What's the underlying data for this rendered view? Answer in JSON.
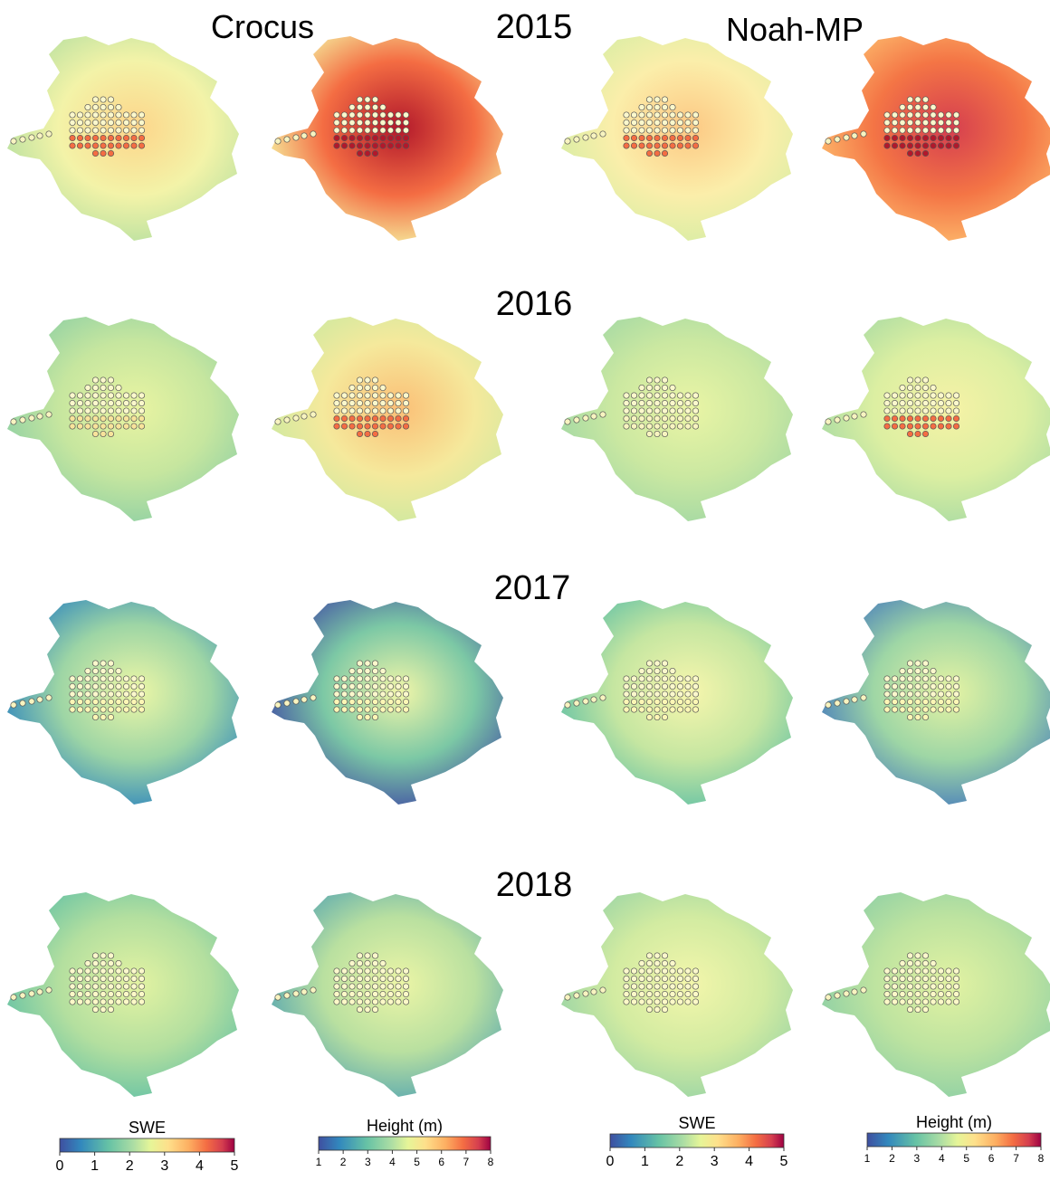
{
  "models": [
    "Crocus",
    "Noah-MP"
  ],
  "years": [
    "2015",
    "2016",
    "2017",
    "2018"
  ],
  "colorbars": [
    {
      "label": "SWE",
      "lim": [
        0,
        5
      ],
      "ticks": [
        0,
        1,
        2,
        3,
        4,
        5
      ]
    },
    {
      "label": "Height (m)",
      "lim": [
        1,
        8
      ],
      "ticks": [
        1,
        2,
        3,
        4,
        5,
        6,
        7,
        8
      ]
    },
    {
      "label": "SWE",
      "lim": [
        0,
        5
      ],
      "ticks": [
        0,
        1,
        2,
        3,
        4,
        5
      ]
    },
    {
      "label": "Height (m)",
      "lim": [
        1,
        8
      ],
      "ticks": [
        1,
        2,
        3,
        4,
        5,
        6,
        7,
        8
      ]
    }
  ]
}
